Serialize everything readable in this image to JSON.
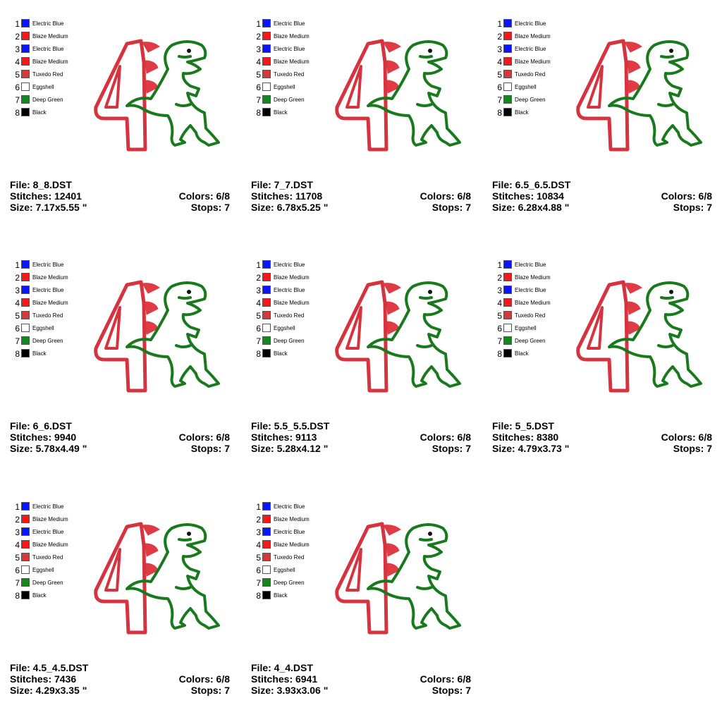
{
  "legend": [
    {
      "num": "1",
      "name": "Electric Blue",
      "color": "#0a14ff"
    },
    {
      "num": "2",
      "name": "Blaze Medium",
      "color": "#f41818"
    },
    {
      "num": "3",
      "name": "Electric Blue",
      "color": "#0a14ff"
    },
    {
      "num": "4",
      "name": "Blaze Medium",
      "color": "#f41818"
    },
    {
      "num": "5",
      "name": "Tuxedo Red",
      "color": "#d03a3a"
    },
    {
      "num": "6",
      "name": "Eggshell",
      "color": "#ffffff"
    },
    {
      "num": "7",
      "name": "Deep Green",
      "color": "#11881a"
    },
    {
      "num": "8",
      "name": "Black",
      "color": "#000000"
    }
  ],
  "design_colors": {
    "number_outline": "#d6333f",
    "number_fill": "#ffffff",
    "spikes": "#e03a44",
    "dino": "#187a1c",
    "eye": "#111111"
  },
  "designs": [
    {
      "file": "File: 8_8.DST",
      "stitches": "Stitches: 12401",
      "size": "Size: 7.17x5.55 \"",
      "colors": "Colors: 6/8",
      "stops": "Stops: 7"
    },
    {
      "file": "File: 7_7.DST",
      "stitches": "Stitches: 11708",
      "size": "Size: 6.78x5.25 \"",
      "colors": "Colors: 6/8",
      "stops": "Stops: 7"
    },
    {
      "file": "File: 6.5_6.5.DST",
      "stitches": "Stitches: 10834",
      "size": "Size: 6.28x4.88 \"",
      "colors": "Colors: 6/8",
      "stops": "Stops: 7"
    },
    {
      "file": "File: 6_6.DST",
      "stitches": "Stitches: 9940",
      "size": "Size: 5.78x4.49 \"",
      "colors": "Colors: 6/8",
      "stops": "Stops: 7"
    },
    {
      "file": "File: 5.5_5.5.DST",
      "stitches": "Stitches: 9113",
      "size": "Size: 5.28x4.12 \"",
      "colors": "Colors: 6/8",
      "stops": "Stops: 7"
    },
    {
      "file": "File: 5_5.DST",
      "stitches": "Stitches: 8380",
      "size": "Size: 4.79x3.73 \"",
      "colors": "Colors: 6/8",
      "stops": "Stops: 7"
    },
    {
      "file": "File: 4.5_4.5.DST",
      "stitches": "Stitches: 7436",
      "size": "Size: 4.29x3.35 \"",
      "colors": "Colors: 6/8",
      "stops": "Stops: 7"
    },
    {
      "file": "File: 4_4.DST",
      "stitches": "Stitches: 6941",
      "size": "Size: 3.93x3.06 \"",
      "colors": "Colors: 6/8",
      "stops": "Stops: 7"
    }
  ]
}
